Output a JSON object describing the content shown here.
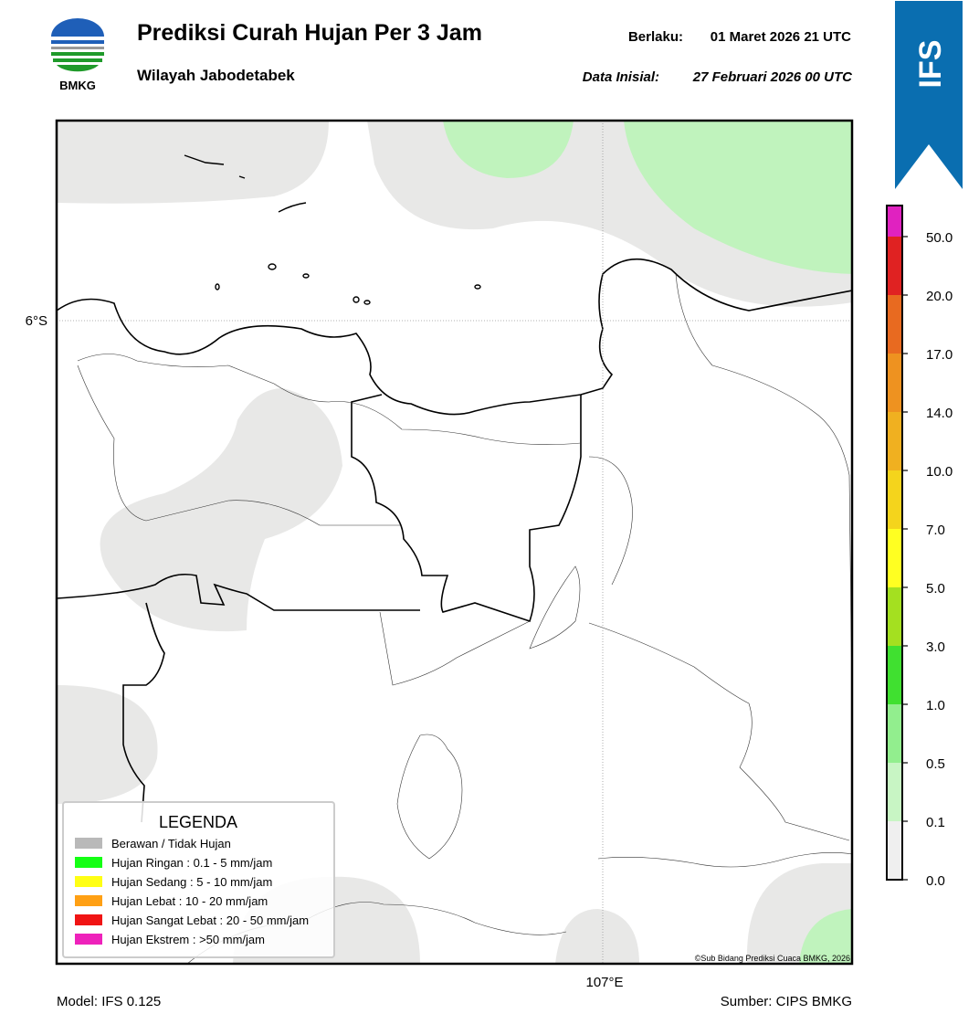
{
  "header": {
    "logo_text": "BMKG",
    "title": "Prediksi Curah Hujan Per 3 Jam",
    "subtitle": "Wilayah Jabodetabek",
    "valid_label": "Berlaku:",
    "valid_time": "01 Maret 2026 21 UTC",
    "init_label": "Data Inisial:",
    "init_time": "27 Februari 2026 00 UTC",
    "badge": "IFS"
  },
  "map": {
    "lat_label": "6°S",
    "lon_label": "107°E",
    "copyright": "©Sub Bidang Prediksi Cuaca BMKG, 2026"
  },
  "legend": {
    "title": "LEGENDA",
    "items": [
      {
        "label": "Berawan / Tidak Hujan",
        "color": "#b9b9b9"
      },
      {
        "label": "Hujan Ringan : 0.1 - 5 mm/jam",
        "color": "#14ff14"
      },
      {
        "label": "Hujan Sedang : 5 - 10 mm/jam",
        "color": "#ffff14"
      },
      {
        "label": "Hujan Lebat : 10 - 20 mm/jam",
        "color": "#ffa014"
      },
      {
        "label": "Hujan Sangat Lebat : 20 - 50 mm/jam",
        "color": "#f01414"
      },
      {
        "label": "Hujan Ekstrem : >50 mm/jam",
        "color": "#ee22bb"
      }
    ]
  },
  "colorbar": {
    "segments": [
      {
        "label": "0.0",
        "color": "#efefef"
      },
      {
        "label": "0.1",
        "color": "#c8f5c4"
      },
      {
        "label": "0.5",
        "color": "#92ee8e"
      },
      {
        "label": "1.0",
        "color": "#40e030"
      },
      {
        "label": "3.0",
        "color": "#a4e020"
      },
      {
        "label": "5.0",
        "color": "#ffff22"
      },
      {
        "label": "7.0",
        "color": "#f4d41c"
      },
      {
        "label": "10.0",
        "color": "#f0b020"
      },
      {
        "label": "14.0",
        "color": "#ee9220"
      },
      {
        "label": "17.0",
        "color": "#e86a20"
      },
      {
        "label": "20.0",
        "color": "#e02222"
      },
      {
        "label": "50.0",
        "color": "#e022c0"
      }
    ]
  },
  "footer": {
    "model": "Model: IFS 0.125",
    "source": "Sumber: CIPS BMKG"
  }
}
